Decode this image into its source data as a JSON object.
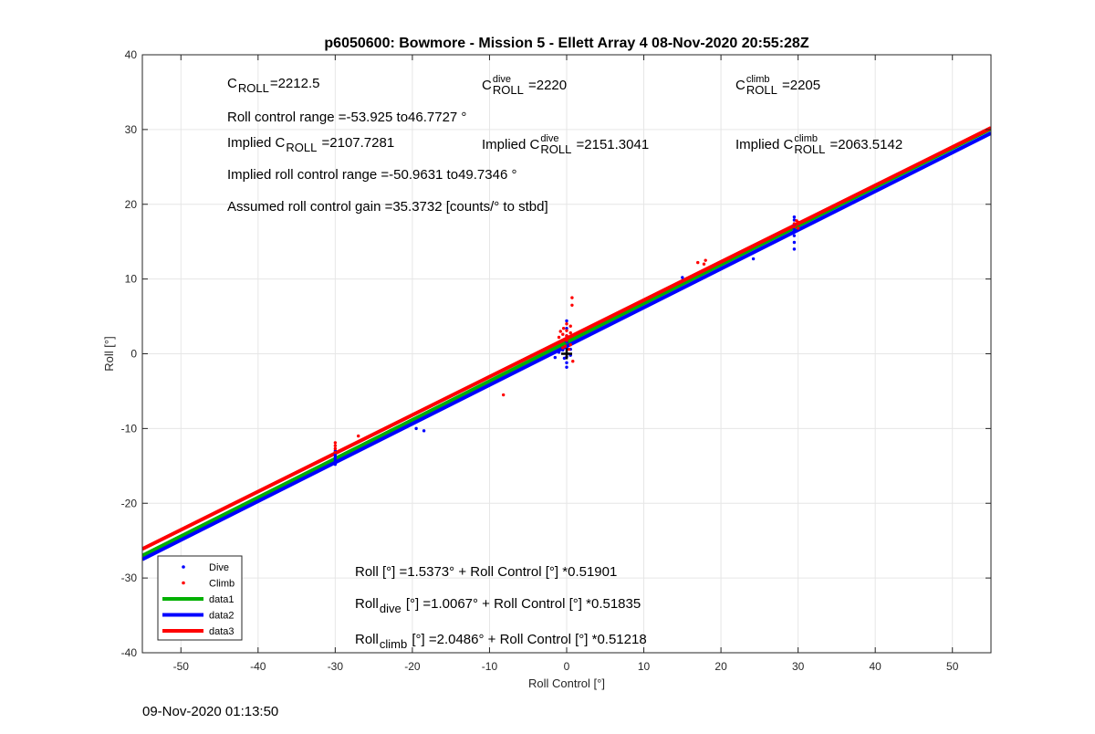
{
  "figure_timestamp": "09-Nov-2020 01:13:50",
  "chart_data": {
    "type": "scatter",
    "title": "p6050600: Bowmore - Mission 5 - Ellett Array 4 08-Nov-2020 20:55:28Z",
    "xlabel": "Roll Control [°]",
    "ylabel": "Roll [°]",
    "xlim": [
      -55,
      55
    ],
    "ylim": [
      -40,
      40
    ],
    "xticks": [
      -50,
      -40,
      -30,
      -20,
      -10,
      0,
      10,
      20,
      30,
      40,
      50
    ],
    "yticks": [
      -40,
      -30,
      -20,
      -10,
      0,
      10,
      20,
      30,
      40
    ],
    "grid": true,
    "legend_position": "bottom-left",
    "colors": {
      "dive": "#0000ff",
      "climb": "#ff0000",
      "data1": "#00b000",
      "data2": "#0000ff",
      "data3": "#ff0000",
      "marker": "#000000"
    },
    "series": [
      {
        "name": "Dive",
        "kind": "points",
        "color": "#0000ff",
        "points": [
          [
            -30,
            -14.8
          ],
          [
            -30,
            -14.5
          ],
          [
            -30,
            -14.2
          ],
          [
            -30,
            -13.9
          ],
          [
            -30,
            -13.6
          ],
          [
            -30,
            -13.3
          ],
          [
            -30,
            -13.0
          ],
          [
            -19.5,
            -10.0
          ],
          [
            -18.5,
            -10.3
          ],
          [
            -1.5,
            -0.5
          ],
          [
            -1,
            0.2
          ],
          [
            -0.5,
            0.5
          ],
          [
            -0.3,
            -0.6
          ],
          [
            0,
            -1.8
          ],
          [
            0,
            -1.2
          ],
          [
            0,
            -0.4
          ],
          [
            0,
            0.8
          ],
          [
            0,
            1.6
          ],
          [
            0,
            2.4
          ],
          [
            0,
            3.4
          ],
          [
            0,
            4.4
          ],
          [
            0.3,
            1.2
          ],
          [
            0.5,
            -0.2
          ],
          [
            0.5,
            0.6
          ],
          [
            15,
            10.2
          ],
          [
            24.2,
            12.7
          ],
          [
            29.5,
            18.3
          ],
          [
            29.5,
            17.9
          ],
          [
            29.5,
            17.3
          ],
          [
            29.5,
            16.6
          ],
          [
            29.5,
            15.8
          ],
          [
            29.5,
            14.9
          ],
          [
            29.5,
            14.0
          ]
        ]
      },
      {
        "name": "Climb",
        "kind": "points",
        "color": "#ff0000",
        "points": [
          [
            -30,
            -13.2
          ],
          [
            -30,
            -12.7
          ],
          [
            -30,
            -12.3
          ],
          [
            -30,
            -11.9
          ],
          [
            -27,
            -11.0
          ],
          [
            -8.2,
            -5.5
          ],
          [
            -1,
            1.5
          ],
          [
            -1,
            2.2
          ],
          [
            -0.8,
            3.0
          ],
          [
            -0.5,
            0.8
          ],
          [
            -0.5,
            2.6
          ],
          [
            -0.4,
            3.4
          ],
          [
            -0.2,
            1.0
          ],
          [
            0,
            1.8
          ],
          [
            0,
            2.4
          ],
          [
            0,
            3.1
          ],
          [
            0,
            4.0
          ],
          [
            0.3,
            0.6
          ],
          [
            0.3,
            2.2
          ],
          [
            0.5,
            1.2
          ],
          [
            0.5,
            2.8
          ],
          [
            0.5,
            3.7
          ],
          [
            0.7,
            6.5
          ],
          [
            0.7,
            7.5
          ],
          [
            0.8,
            -1.0
          ],
          [
            17,
            12.2
          ],
          [
            18,
            12.5
          ],
          [
            17.8,
            12.0
          ],
          [
            29.5,
            17.0
          ],
          [
            29.5,
            17.4
          ],
          [
            29.8,
            17.8
          ],
          [
            30,
            16.8
          ],
          [
            30,
            17.6
          ]
        ]
      },
      {
        "name": "data1",
        "kind": "line",
        "color": "#00b000",
        "intercept": 1.5373,
        "slope": 0.51901,
        "x": [
          -55,
          55
        ]
      },
      {
        "name": "data2",
        "kind": "line",
        "color": "#0000ff",
        "intercept": 1.0067,
        "slope": 0.51835,
        "x": [
          -55,
          55
        ]
      },
      {
        "name": "data3",
        "kind": "line",
        "color": "#ff0000",
        "intercept": 2.0486,
        "slope": 0.51218,
        "x": [
          -55,
          55
        ]
      }
    ],
    "origin_marker": {
      "x": 0,
      "y": 0
    },
    "annotations": {
      "c_roll": {
        "base": "C",
        "sub": "ROLL",
        "rest": "=2212.5"
      },
      "c_roll_dive": {
        "base": "C",
        "sup": "dive",
        "sub": "ROLL",
        "rest": " =2220"
      },
      "c_roll_climb": {
        "base": "C",
        "sup": "climb",
        "sub": "ROLL",
        "rest": " =2205"
      },
      "roll_control_range": "Roll control range =-53.925 to46.7727 °",
      "implied_c_roll": {
        "base": "Implied C",
        "sub": "ROLL",
        "rest": " =2107.7281"
      },
      "implied_c_roll_dive": {
        "base": "Implied C",
        "sup": "dive",
        "sub": "ROLL",
        "rest": " =2151.3041"
      },
      "implied_c_roll_climb": {
        "base": "Implied C",
        "sup": "climb",
        "sub": "ROLL",
        "rest": " =2063.5142"
      },
      "implied_roll_control_range": "Implied roll control range =-50.9631 to49.7346 °",
      "assumed_gain": "Assumed roll control gain =35.3732 [counts/° to stbd]",
      "fit_all": "Roll [°] =1.5373° + Roll Control [°] *0.51901",
      "fit_dive": {
        "base": "Roll",
        "sub": "dive",
        "rest": " [°] =1.0067° + Roll Control [°] *0.51835"
      },
      "fit_climb": {
        "base": "Roll",
        "sub": "climb",
        "rest": " [°] =2.0486° + Roll Control [°] *0.51218"
      }
    }
  }
}
